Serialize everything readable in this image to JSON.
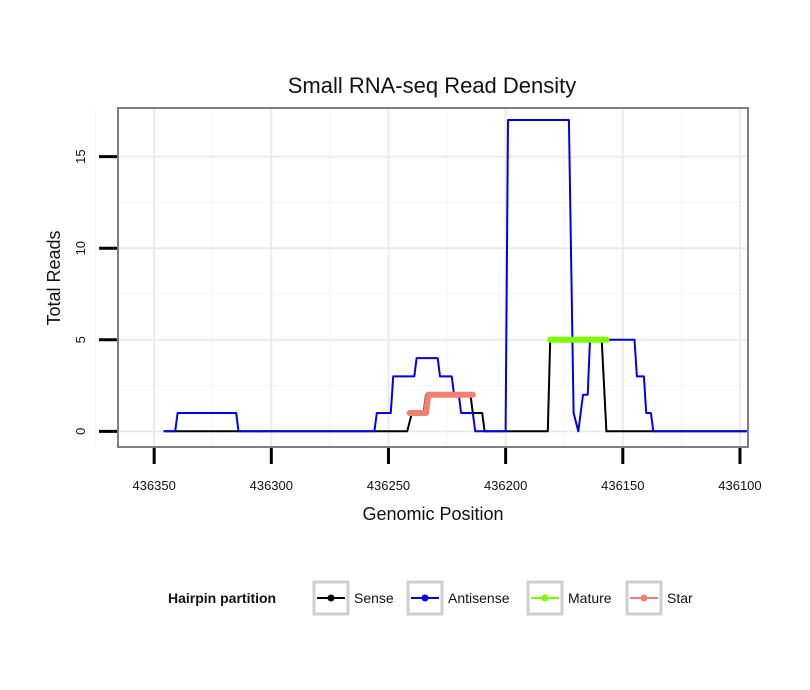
{
  "chart_data": {
    "type": "line",
    "title": "Small RNA-seq Read Density",
    "xlabel": "Genomic Position",
    "ylabel": "Total Reads",
    "xlim": [
      436365,
      436097
    ],
    "ylim": [
      -0.8,
      17.6
    ],
    "x_reversed": true,
    "x_ticks": [
      436350,
      436300,
      436250,
      436200,
      436150,
      436100
    ],
    "x_tick_labels": [
      "436350",
      "436300",
      "436250",
      "436200",
      "436150",
      "436100"
    ],
    "y_ticks": [
      0,
      5,
      10,
      15
    ],
    "y_tick_labels": [
      "0",
      "5",
      "10",
      "15"
    ],
    "grid": true,
    "legend": {
      "title": "Hairpin partition",
      "position": "bottom",
      "entries": [
        "Sense",
        "Antisense",
        "Mature",
        "Star"
      ]
    },
    "series": [
      {
        "name": "Sense",
        "color": "#000000",
        "stroke_width": 2,
        "points": [
          [
            436346,
            0
          ],
          [
            436242,
            0
          ],
          [
            436240,
            1
          ],
          [
            436235,
            1
          ],
          [
            436234,
            2
          ],
          [
            436215,
            2
          ],
          [
            436214,
            1
          ],
          [
            436210,
            1
          ],
          [
            436209,
            0
          ],
          [
            436182,
            0
          ],
          [
            436181,
            5
          ],
          [
            436159,
            5
          ],
          [
            436157,
            0
          ],
          [
            436097,
            0
          ]
        ]
      },
      {
        "name": "Antisense",
        "color": "#0000ee",
        "stroke_width": 2,
        "points": [
          [
            436346,
            0
          ],
          [
            436341,
            0
          ],
          [
            436340,
            1
          ],
          [
            436315,
            1
          ],
          [
            436314,
            0
          ],
          [
            436256,
            0
          ],
          [
            436255,
            1
          ],
          [
            436249,
            1
          ],
          [
            436248,
            3
          ],
          [
            436239,
            3
          ],
          [
            436238,
            4
          ],
          [
            436229,
            4
          ],
          [
            436228,
            3
          ],
          [
            436223,
            3
          ],
          [
            436222,
            2
          ],
          [
            436220,
            2
          ],
          [
            436219,
            1
          ],
          [
            436214,
            1
          ],
          [
            436213,
            0
          ],
          [
            436200,
            0
          ],
          [
            436199,
            17
          ],
          [
            436173,
            17
          ],
          [
            436171,
            1
          ],
          [
            436169,
            0
          ],
          [
            436167,
            2
          ],
          [
            436165,
            2
          ],
          [
            436164,
            5
          ],
          [
            436155,
            5
          ],
          [
            436153,
            5
          ],
          [
            436145,
            5
          ],
          [
            436144,
            3
          ],
          [
            436141,
            3
          ],
          [
            436140,
            1
          ],
          [
            436138,
            1
          ],
          [
            436137,
            0
          ],
          [
            436097,
            0
          ]
        ]
      },
      {
        "name": "Mature",
        "color": "#7cfc00",
        "stroke_width": 6,
        "points": [
          [
            436181,
            5
          ],
          [
            436157,
            5
          ]
        ]
      },
      {
        "name": "Star",
        "color": "#f08070",
        "stroke_width": 6,
        "points": [
          [
            436241,
            1
          ],
          [
            436234,
            1
          ],
          [
            436233,
            2
          ],
          [
            436214,
            2
          ]
        ]
      }
    ]
  }
}
